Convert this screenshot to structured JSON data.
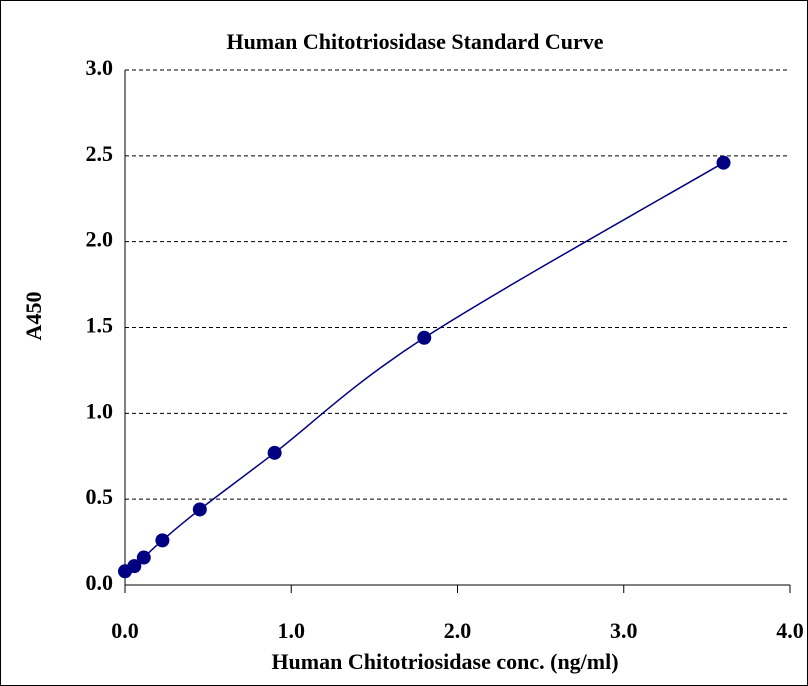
{
  "chart_data": {
    "type": "line",
    "title": "Human Chitotriosidase Standard Curve",
    "xlabel": "Human Chitotriosidase conc. (ng/ml)",
    "ylabel": "A450",
    "x": [
      0,
      0.056,
      0.113,
      0.225,
      0.45,
      0.9,
      1.8,
      3.6
    ],
    "series": [
      {
        "color": "#000080",
        "values": [
          0.08,
          0.11,
          0.16,
          0.26,
          0.44,
          0.77,
          1.44,
          2.46
        ]
      }
    ],
    "xlim": [
      0,
      4
    ],
    "ylim": [
      0,
      3
    ],
    "xticks": [
      {
        "value": 0,
        "label": "0.0"
      },
      {
        "value": 1,
        "label": "1.0"
      },
      {
        "value": 2,
        "label": "2.0"
      },
      {
        "value": 3,
        "label": "3.0"
      },
      {
        "value": 4,
        "label": "4.0"
      }
    ],
    "yticks": [
      {
        "value": 0,
        "label": "0.0"
      },
      0.5,
      {
        "value": 1,
        "label": "1.0"
      },
      1.5,
      {
        "value": 2,
        "label": "2.0"
      },
      2.5,
      {
        "value": 3,
        "label": "3.0"
      }
    ],
    "grid": true
  }
}
